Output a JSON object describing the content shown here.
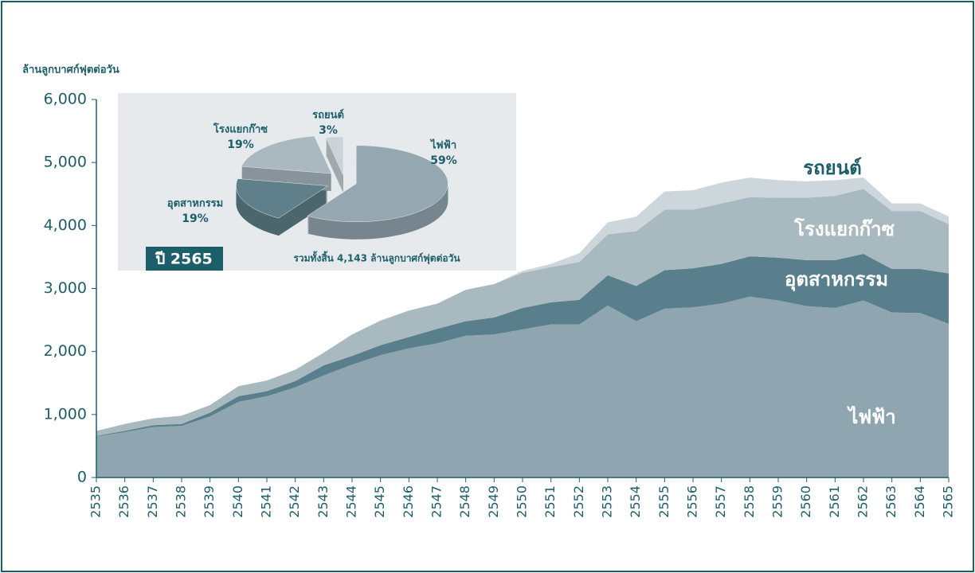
{
  "chart_data": [
    {
      "type": "area",
      "y_label": "ล้านลูกบาศก์ฟุตต่อวัน",
      "x": [
        2535,
        2536,
        2537,
        2538,
        2539,
        2540,
        2541,
        2542,
        2543,
        2544,
        2545,
        2546,
        2547,
        2548,
        2549,
        2550,
        2551,
        2552,
        2553,
        2554,
        2555,
        2556,
        2557,
        2558,
        2559,
        2560,
        2561,
        2562,
        2563,
        2564,
        2565
      ],
      "xlim": [
        2535,
        2565
      ],
      "ylim": [
        0,
        6000
      ],
      "yticks": [
        0,
        {
          "value": 1000,
          "label": "1,000"
        },
        {
          "value": 2000,
          "label": "2,000"
        },
        {
          "value": 3000,
          "label": "3,000"
        },
        {
          "value": 4000,
          "label": "4,000"
        },
        {
          "value": 5000,
          "label": "5,000"
        },
        {
          "value": 6000,
          "label": "6,000"
        }
      ],
      "stacked": true,
      "series": [
        {
          "name": "ไฟฟ้า",
          "color": "#8fa5b0",
          "values": [
            650,
            720,
            800,
            820,
            970,
            1200,
            1290,
            1430,
            1620,
            1790,
            1940,
            2050,
            2130,
            2250,
            2270,
            2350,
            2430,
            2430,
            2730,
            2480,
            2680,
            2700,
            2760,
            2870,
            2810,
            2720,
            2690,
            2810,
            2620,
            2610,
            2440
          ]
        },
        {
          "name": "อุตสาหกรรม",
          "color": "#5a7f8c",
          "values": [
            10,
            20,
            30,
            30,
            60,
            90,
            80,
            100,
            160,
            140,
            160,
            180,
            230,
            230,
            270,
            340,
            350,
            390,
            480,
            560,
            610,
            620,
            630,
            640,
            680,
            730,
            760,
            740,
            690,
            700,
            800
          ]
        },
        {
          "name": "โรงแยกก๊าซ",
          "color": "#a9b9c0",
          "values": [
            80,
            110,
            110,
            130,
            120,
            160,
            170,
            180,
            200,
            340,
            390,
            420,
            400,
            500,
            530,
            560,
            560,
            600,
            650,
            870,
            960,
            930,
            960,
            940,
            950,
            990,
            1020,
            1030,
            920,
            920,
            780
          ]
        },
        {
          "name": "รถยนต์",
          "color": "#cdd6db",
          "values": [
            0,
            0,
            0,
            0,
            0,
            0,
            0,
            0,
            0,
            0,
            0,
            0,
            0,
            0,
            0,
            30,
            50,
            140,
            190,
            230,
            290,
            310,
            330,
            310,
            280,
            260,
            250,
            180,
            120,
            120,
            123
          ]
        }
      ]
    },
    {
      "type": "pie",
      "title": "ปี 2565",
      "annotation": "รวมทั้งสิ้น 4,143 ล้านลูกบาศก์ฟุตต่อวัน",
      "categories": [
        "ไฟฟ้า",
        "อุตสาหกรรม",
        "โรงแยกก๊าซ",
        "รถยนต์"
      ],
      "values": [
        59,
        19,
        19,
        3
      ],
      "value_labels": [
        "59%",
        "19%",
        "19%",
        "3%"
      ],
      "colors": [
        "#95a8b2",
        "#5f7f8a",
        "#aab9c0",
        "#c9d3d8"
      ]
    }
  ]
}
